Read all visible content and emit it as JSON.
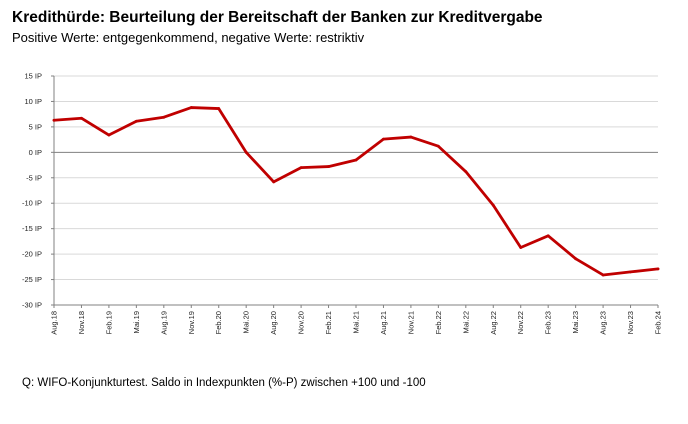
{
  "title": "Kredithürde: Beurteilung der Bereitschaft der Banken zur Kreditvergabe",
  "subtitle": "Positive Werte: entgegenkommend, negative Werte: restriktiv",
  "source": "Q: WIFO-Konjunkturtest. Saldo in Indexpunkten (%-P) zwischen +100 und -100",
  "colors": {
    "line": "#c00000",
    "grid": "#d9d9d9",
    "axis": "#808080"
  },
  "chart_data": {
    "type": "line",
    "title": "Kredithürde: Beurteilung der Bereitschaft der Banken zur Kreditvergabe",
    "subtitle": "Positive Werte: entgegenkommend, negative Werte: restriktiv",
    "xlabel": "",
    "ylabel": "",
    "ylim": [
      -30,
      15
    ],
    "grid": true,
    "legend": "none",
    "y_ticks": [
      15,
      10,
      5,
      0,
      -5,
      -10,
      -15,
      -20,
      -25,
      -30
    ],
    "y_tick_labels": [
      "15 IP",
      "10 IP",
      "5 IP",
      "0 IP",
      "-5 IP",
      "-10 IP",
      "-15 IP",
      "-20 IP",
      "-25 IP",
      "-30 IP"
    ],
    "categories": [
      "Aug.18",
      "Nov.18",
      "Feb.19",
      "Mai.19",
      "Aug.19",
      "Nov.19",
      "Feb.20",
      "Mai.20",
      "Aug.20",
      "Nov.20",
      "Feb.21",
      "Mai.21",
      "Aug.21",
      "Nov.21",
      "Feb.22",
      "Mai.22",
      "Aug.22",
      "Nov.22",
      "Feb.23",
      "Mai.23",
      "Aug.23",
      "Nov.23",
      "Feb.24"
    ],
    "series": [
      {
        "values": [
          6.3,
          6.7,
          3.4,
          6.1,
          6.9,
          8.8,
          8.6,
          0.0,
          -5.8,
          -3.0,
          -2.8,
          -1.5,
          2.6,
          3.0,
          1.2,
          -3.8,
          -10.4,
          -18.7,
          -16.4,
          -20.9,
          -24.1,
          -23.5,
          -22.9
        ]
      }
    ]
  }
}
